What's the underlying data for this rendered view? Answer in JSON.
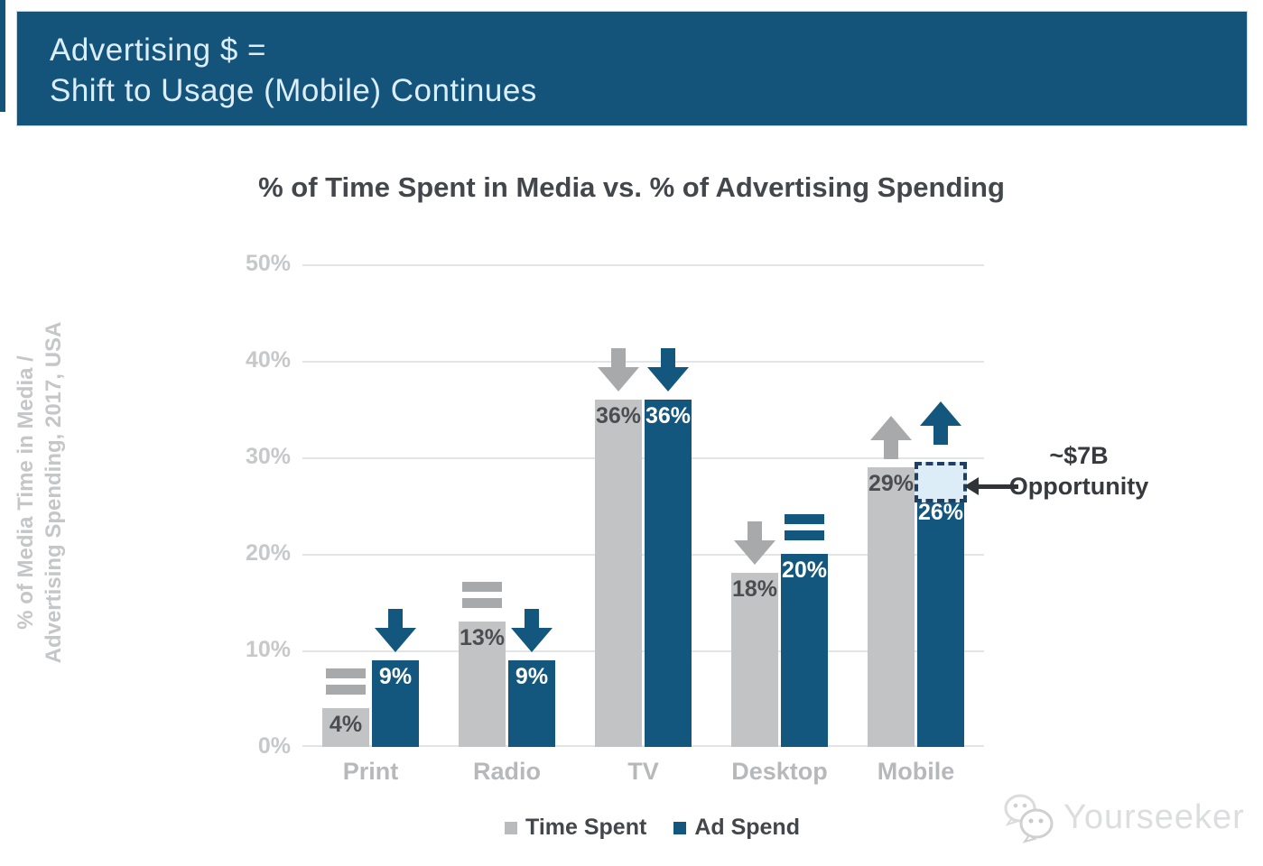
{
  "banner": {
    "line1": "Advertising $ =",
    "line2": "Shift to Usage (Mobile) Continues"
  },
  "chart_data": {
    "type": "bar",
    "title": "% of Time Spent in Media vs. % of Advertising Spending",
    "ylabel_line1": "% of Media Time in Media /",
    "ylabel_line2": "Advertising Spending, 2017, USA",
    "categories": [
      "Print",
      "Radio",
      "TV",
      "Desktop",
      "Mobile"
    ],
    "y_ticks": [
      "50%",
      "40%",
      "30%",
      "20%",
      "10%",
      "0%"
    ],
    "ylim": [
      0,
      50
    ],
    "grid": true,
    "legend_position": "bottom",
    "series": [
      {
        "name": "Time Spent",
        "color": "#c2c3c5",
        "label_color": "#4b4d50",
        "indicator_color": "#a7a9ab",
        "values": [
          4,
          13,
          36,
          18,
          29
        ],
        "labels": [
          "4%",
          "13%",
          "36%",
          "18%",
          "29%"
        ],
        "indicators": [
          "equal",
          "equal",
          "down",
          "down",
          "up"
        ]
      },
      {
        "name": "Ad Spend",
        "color": "#13577e",
        "label_color": "#ffffff",
        "indicator_color": "#13577e",
        "values": [
          9,
          9,
          36,
          20,
          26
        ],
        "labels": [
          "9%",
          "9%",
          "36%",
          "20%",
          "26%"
        ],
        "indicators": [
          "down",
          "down",
          "down",
          "equal",
          "up"
        ]
      }
    ],
    "opportunity_box": {
      "category": "Mobile",
      "series": "Ad Spend",
      "from": 26,
      "to": 29.5
    },
    "annotation": {
      "line1": "~$7B",
      "line2": "Opportunity"
    }
  },
  "legend": {
    "items": [
      {
        "label": "Time Spent",
        "color": "#b9bbbc"
      },
      {
        "label": "Ad Spend",
        "color": "#13577e"
      }
    ]
  },
  "watermark": {
    "text": "Yourseeker"
  }
}
